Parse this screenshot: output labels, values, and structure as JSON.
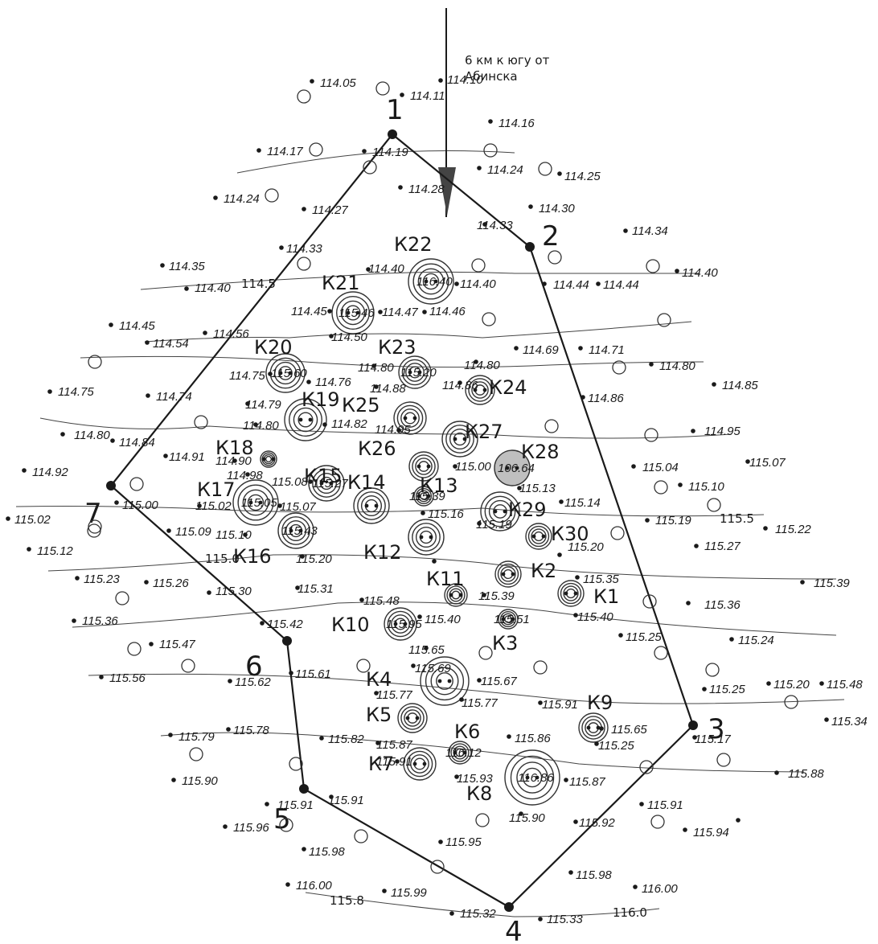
{
  "north_note": [
    "6 км к югу от",
    "Абинска"
  ],
  "boundary_vertices": [
    "1",
    "2",
    "3",
    "4",
    "5",
    "6",
    "7"
  ],
  "sinkhole_labels": [
    "К1",
    "К2",
    "К3",
    "К4",
    "К5",
    "К6",
    "К7",
    "К8",
    "К9",
    "К10",
    "К11",
    "К12",
    "К13",
    "К14",
    "К15",
    "К16",
    "К17",
    "К18",
    "К19",
    "К20",
    "К21",
    "К22",
    "К23",
    "К24",
    "К25",
    "К26",
    "К27",
    "К28",
    "К29",
    "К30"
  ],
  "sinkhole_inner_marks": [
    "115.60",
    "115.20",
    "115.20",
    "115.46",
    "116.40",
    "116.40",
    "115.85",
    "115.57",
    "115.27",
    "115.59",
    "115.05",
    "115.43",
    "115.39",
    "106.64",
    "116.86",
    "115.67",
    "115.95",
    "116.12",
    "115.51"
  ],
  "contour_marks": [
    "114.5",
    "115.0",
    "115.5",
    "115.8",
    "116.0",
    "116.0",
    "116.0"
  ],
  "elevations": [
    "114.05",
    "114.11",
    "114.10",
    "114.16",
    "114.17",
    "114.19",
    "114.24",
    "114.25",
    "114.28",
    "114.24",
    "114.27",
    "114.30",
    "114.33",
    "114.34",
    "114.33",
    "114.35",
    "114.40",
    "114.40",
    "114.40",
    "114.40",
    "114.44",
    "114.44",
    "114.45",
    "114.47",
    "114.46",
    "114.45",
    "114.54",
    "114.56",
    "114.50",
    "114.69",
    "114.71",
    "114.75",
    "114.74",
    "114.75",
    "114.76",
    "114.80",
    "114.79",
    "114.82",
    "114.80",
    "114.80",
    "114.85",
    "114.86",
    "114.80",
    "114.86",
    "114.88",
    "114.80",
    "114.84",
    "114.91",
    "114.90",
    "114.98",
    "114.95",
    "114.92",
    "114.95",
    "115.00",
    "115.00",
    "115.02",
    "115.02",
    "115.04",
    "115.07",
    "115.08",
    "115.07",
    "115.10",
    "115.09",
    "115.10",
    "115.13",
    "115.14",
    "115.12",
    "115.16",
    "115.19",
    "115.19",
    "115.20",
    "115.20",
    "115.22",
    "115.23",
    "115.26",
    "115.27",
    "115.30",
    "115.31",
    "115.35",
    "115.36",
    "115.36",
    "115.39",
    "115.39",
    "115.40",
    "115.40",
    "115.42",
    "115.47",
    "115.48",
    "115.56",
    "115.61",
    "115.62",
    "115.65",
    "115.65",
    "115.67",
    "115.69",
    "115.77",
    "115.77",
    "115.78",
    "115.79",
    "115.82",
    "115.86",
    "115.87",
    "115.87",
    "115.88",
    "115.90",
    "115.90",
    "115.91",
    "115.91",
    "115.91",
    "115.91",
    "115.92",
    "115.93",
    "115.94",
    "115.95",
    "115.96",
    "115.98",
    "115.98",
    "115.99",
    "116.00",
    "116.00",
    "115.32",
    "115.33",
    "115.24",
    "115.25",
    "115.25",
    "115.25",
    "115.20",
    "115.48",
    "115.34",
    "115.91",
    "115.17"
  ],
  "colors": {
    "ink": "#1a1a1a",
    "filled_sinkhole": "#bfbfbf"
  }
}
